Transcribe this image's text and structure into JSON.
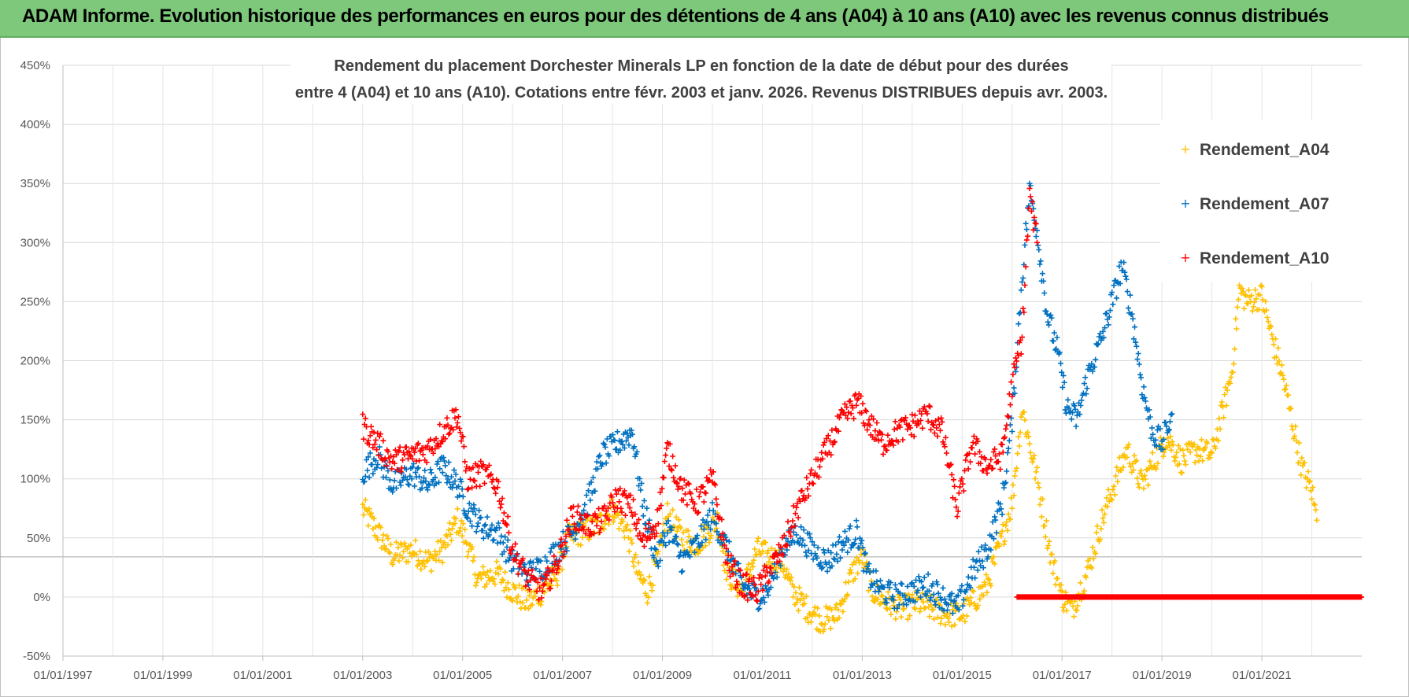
{
  "banner": {
    "title": "ADAM Informe. Evolution historique des performances en euros pour des détentions de 4 ans (A04) à 10 ans (A10) avec les revenus connus distribués"
  },
  "colors": {
    "banner_bg": "#7dc87a",
    "a04": "#ffc000",
    "a07": "#0070c0",
    "a10": "#ff0000",
    "grid": "#d9d9d9",
    "text": "#404040"
  },
  "chart_data": {
    "type": "scatter",
    "title_lines": [
      "Rendement du placement Dorchester Minerals LP en fonction de la date de début pour des durées",
      "entre 4 (A04) et 10 ans (A10).  Cotations entre févr. 2003 et janv. 2026. Revenus DISTRIBUES depuis avr. 2003."
    ],
    "xlabel": "",
    "ylabel": "",
    "x_ticks": [
      "01/01/1997",
      "01/01/1999",
      "01/01/2001",
      "01/01/2003",
      "01/01/2005",
      "01/01/2007",
      "01/01/2009",
      "01/01/2011",
      "01/01/2013",
      "01/01/2015",
      "01/01/2017",
      "01/01/2019",
      "01/01/2021"
    ],
    "xlim": [
      1997.0,
      2023.0
    ],
    "y_ticks": [
      "-50%",
      "0%",
      "50%",
      "100%",
      "150%",
      "200%",
      "250%",
      "300%",
      "350%",
      "400%",
      "450%"
    ],
    "ylim": [
      -50,
      450
    ],
    "legend": "top-right",
    "marker": "+",
    "series": [
      {
        "name": "Rendement_A04",
        "color": "#ffc000",
        "points": [
          [
            2003.0,
            75
          ],
          [
            2003.3,
            55
          ],
          [
            2003.6,
            35
          ],
          [
            2004.0,
            40
          ],
          [
            2004.3,
            30
          ],
          [
            2004.6,
            40
          ],
          [
            2004.9,
            65
          ],
          [
            2005.1,
            45
          ],
          [
            2005.3,
            15
          ],
          [
            2005.7,
            20
          ],
          [
            2006.0,
            5
          ],
          [
            2006.3,
            -5
          ],
          [
            2006.6,
            5
          ],
          [
            2006.9,
            20
          ],
          [
            2007.1,
            50
          ],
          [
            2007.4,
            55
          ],
          [
            2007.7,
            60
          ],
          [
            2008.0,
            75
          ],
          [
            2008.3,
            55
          ],
          [
            2008.5,
            20
          ],
          [
            2008.7,
            5
          ],
          [
            2008.9,
            30
          ],
          [
            2009.1,
            70
          ],
          [
            2009.4,
            50
          ],
          [
            2009.7,
            45
          ],
          [
            2009.9,
            55
          ],
          [
            2010.1,
            65
          ],
          [
            2010.3,
            20
          ],
          [
            2010.6,
            5
          ],
          [
            2010.9,
            40
          ],
          [
            2011.1,
            35
          ],
          [
            2011.4,
            30
          ],
          [
            2011.6,
            5
          ],
          [
            2011.9,
            -10
          ],
          [
            2012.2,
            -20
          ],
          [
            2012.5,
            -15
          ],
          [
            2012.8,
            20
          ],
          [
            2013.0,
            35
          ],
          [
            2013.2,
            5
          ],
          [
            2013.5,
            -5
          ],
          [
            2013.8,
            -10
          ],
          [
            2014.1,
            -5
          ],
          [
            2014.4,
            -10
          ],
          [
            2014.7,
            -15
          ],
          [
            2015.0,
            -15
          ],
          [
            2015.3,
            0
          ],
          [
            2015.5,
            10
          ],
          [
            2015.8,
            50
          ],
          [
            2016.0,
            80
          ],
          [
            2016.2,
            160
          ],
          [
            2016.5,
            100
          ],
          [
            2016.8,
            30
          ],
          [
            2017.0,
            0
          ],
          [
            2017.2,
            -10
          ],
          [
            2017.5,
            20
          ],
          [
            2017.8,
            65
          ],
          [
            2018.0,
            90
          ],
          [
            2018.3,
            125
          ],
          [
            2018.6,
            95
          ],
          [
            2018.9,
            120
          ],
          [
            2019.1,
            135
          ],
          [
            2019.4,
            115
          ],
          [
            2019.7,
            125
          ],
          [
            2020.0,
            120
          ],
          [
            2020.2,
            155
          ],
          [
            2020.4,
            190
          ],
          [
            2020.55,
            260
          ],
          [
            2020.7,
            250
          ],
          [
            2021.0,
            255
          ],
          [
            2021.2,
            220
          ],
          [
            2021.4,
            190
          ],
          [
            2021.6,
            150
          ],
          [
            2021.8,
            110
          ],
          [
            2022.0,
            90
          ],
          [
            2022.1,
            65
          ]
        ]
      },
      {
        "name": "Rendement_A07",
        "color": "#0070c0",
        "points": [
          [
            2003.0,
            105
          ],
          [
            2003.3,
            120
          ],
          [
            2003.6,
            95
          ],
          [
            2004.0,
            105
          ],
          [
            2004.3,
            95
          ],
          [
            2004.6,
            110
          ],
          [
            2004.9,
            95
          ],
          [
            2005.1,
            75
          ],
          [
            2005.4,
            60
          ],
          [
            2005.7,
            55
          ],
          [
            2006.0,
            30
          ],
          [
            2006.3,
            20
          ],
          [
            2006.6,
            25
          ],
          [
            2006.9,
            40
          ],
          [
            2007.2,
            55
          ],
          [
            2007.5,
            80
          ],
          [
            2007.8,
            120
          ],
          [
            2008.1,
            130
          ],
          [
            2008.4,
            140
          ],
          [
            2008.6,
            80
          ],
          [
            2008.9,
            30
          ],
          [
            2009.1,
            60
          ],
          [
            2009.4,
            30
          ],
          [
            2009.7,
            45
          ],
          [
            2010.0,
            70
          ],
          [
            2010.3,
            40
          ],
          [
            2010.6,
            10
          ],
          [
            2010.9,
            0
          ],
          [
            2011.1,
            5
          ],
          [
            2011.4,
            40
          ],
          [
            2011.7,
            55
          ],
          [
            2012.0,
            40
          ],
          [
            2012.3,
            30
          ],
          [
            2012.6,
            45
          ],
          [
            2012.9,
            55
          ],
          [
            2013.1,
            20
          ],
          [
            2013.4,
            5
          ],
          [
            2013.7,
            0
          ],
          [
            2014.0,
            5
          ],
          [
            2014.3,
            10
          ],
          [
            2014.6,
            0
          ],
          [
            2014.9,
            -10
          ],
          [
            2015.2,
            20
          ],
          [
            2015.5,
            40
          ],
          [
            2015.8,
            80
          ],
          [
            2016.0,
            150
          ],
          [
            2016.2,
            270
          ],
          [
            2016.35,
            345
          ],
          [
            2016.5,
            310
          ],
          [
            2016.7,
            240
          ],
          [
            2016.9,
            210
          ],
          [
            2017.1,
            160
          ],
          [
            2017.3,
            150
          ],
          [
            2017.5,
            185
          ],
          [
            2017.8,
            220
          ],
          [
            2018.0,
            250
          ],
          [
            2018.2,
            280
          ],
          [
            2018.4,
            240
          ],
          [
            2018.6,
            180
          ],
          [
            2018.8,
            140
          ],
          [
            2019.0,
            130
          ],
          [
            2019.2,
            155
          ]
        ]
      },
      {
        "name": "Rendement_A10",
        "color": "#ff0000",
        "points": [
          [
            2003.0,
            145
          ],
          [
            2003.3,
            130
          ],
          [
            2003.6,
            115
          ],
          [
            2004.0,
            120
          ],
          [
            2004.3,
            125
          ],
          [
            2004.6,
            140
          ],
          [
            2004.9,
            155
          ],
          [
            2005.1,
            100
          ],
          [
            2005.4,
            105
          ],
          [
            2005.7,
            95
          ],
          [
            2006.0,
            40
          ],
          [
            2006.3,
            15
          ],
          [
            2006.6,
            5
          ],
          [
            2006.9,
            30
          ],
          [
            2007.2,
            70
          ],
          [
            2007.5,
            60
          ],
          [
            2007.8,
            65
          ],
          [
            2008.1,
            85
          ],
          [
            2008.4,
            75
          ],
          [
            2008.6,
            45
          ],
          [
            2008.9,
            65
          ],
          [
            2009.1,
            125
          ],
          [
            2009.4,
            90
          ],
          [
            2009.7,
            80
          ],
          [
            2010.0,
            100
          ],
          [
            2010.3,
            30
          ],
          [
            2010.6,
            10
          ],
          [
            2010.9,
            5
          ],
          [
            2011.1,
            20
          ],
          [
            2011.4,
            40
          ],
          [
            2011.7,
            75
          ],
          [
            2012.0,
            100
          ],
          [
            2012.3,
            125
          ],
          [
            2012.6,
            150
          ],
          [
            2012.9,
            165
          ],
          [
            2013.1,
            150
          ],
          [
            2013.4,
            130
          ],
          [
            2013.7,
            140
          ],
          [
            2014.0,
            145
          ],
          [
            2014.3,
            155
          ],
          [
            2014.6,
            140
          ],
          [
            2014.9,
            75
          ],
          [
            2015.2,
            130
          ],
          [
            2015.5,
            110
          ],
          [
            2015.8,
            120
          ],
          [
            2016.0,
            180
          ],
          [
            2016.2,
            220
          ],
          [
            2016.35,
            340
          ],
          [
            2016.5,
            300
          ]
        ]
      }
    ],
    "zero_line_series": {
      "name": "Rendement_A10 (0%)",
      "x_range": [
        2016.1,
        2023.0
      ],
      "value": 0
    }
  }
}
